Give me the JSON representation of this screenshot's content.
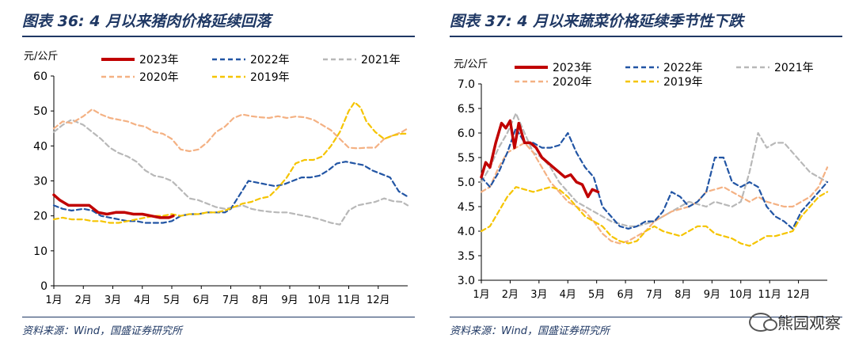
{
  "watermark": "熊园观察",
  "charts": [
    {
      "title": "图表 36:  4 月以来猪肉价格延续回落",
      "source": "资料来源：Wind，国盛证券研究所",
      "unit": "元/公斤",
      "chart_data": {
        "type": "line",
        "title": "4 月以来猪肉价格延续回落",
        "xlabel": "",
        "ylabel": "元/公斤",
        "ylim": [
          0,
          60
        ],
        "yticks": [
          0,
          10,
          20,
          30,
          40,
          50,
          60
        ],
        "xlim": [
          1,
          13
        ],
        "x_tick_labels": [
          "1月",
          "2月",
          "3月",
          "4月",
          "5月",
          "6月",
          "7月",
          "8月",
          "9月",
          "10月",
          "11月",
          "12月"
        ],
        "series": [
          {
            "name": "2021年",
            "color": "#b8b8b8",
            "dash": "dashed",
            "x": [
              1,
              1.3,
              1.6,
              2,
              2.3,
              2.6,
              2.9,
              3.2,
              3.5,
              3.8,
              4.1,
              4.4,
              4.7,
              5,
              5.3,
              5.6,
              5.9,
              6.2,
              6.5,
              6.8,
              7.1,
              7.4,
              7.7,
              8,
              8.3,
              8.6,
              8.9,
              9.2,
              9.5,
              9.8,
              10.1,
              10.4,
              10.7,
              11,
              11.3,
              11.6,
              11.9,
              12.2,
              12.5,
              12.8,
              13
            ],
            "y": [
              44,
              46,
              47.5,
              46,
              44,
              42,
              39.5,
              38,
              37,
              35.5,
              33,
              31.5,
              31,
              30,
              27.5,
              25,
              24.5,
              23.5,
              22.5,
              22,
              22.5,
              23,
              22,
              21.5,
              21.2,
              21,
              21,
              20.5,
              20,
              19.5,
              18.8,
              18,
              17.5,
              21.5,
              23,
              23.5,
              24,
              25,
              24.2,
              24,
              23
            ]
          },
          {
            "name": "2020年",
            "color": "#f4b183",
            "dash": "dashed",
            "x": [
              1,
              1.3,
              1.6,
              2,
              2.3,
              2.6,
              2.9,
              3.2,
              3.5,
              3.8,
              4.1,
              4.4,
              4.7,
              5,
              5.3,
              5.6,
              5.9,
              6.2,
              6.5,
              6.8,
              7.1,
              7.4,
              7.7,
              8,
              8.3,
              8.6,
              8.9,
              9.2,
              9.5,
              9.8,
              10.1,
              10.4,
              10.7,
              11,
              11.3,
              11.6,
              11.9,
              12.2,
              12.5,
              12.8,
              13
            ],
            "y": [
              45,
              47,
              46.5,
              48.5,
              50.5,
              49,
              48,
              47.5,
              47,
              46,
              45.5,
              44,
              43.5,
              42,
              39,
              38.5,
              39,
              41,
              44,
              45.5,
              48,
              49,
              48.5,
              48.2,
              48,
              48.5,
              48,
              48.4,
              48.2,
              47.5,
              46,
              44.5,
              42,
              39.5,
              39.3,
              39.5,
              39.5,
              42,
              43,
              44,
              45
            ]
          },
          {
            "name": "2022年",
            "color": "#2255a4",
            "dash": "dashed",
            "x": [
              1,
              1.3,
              1.6,
              2,
              2.3,
              2.6,
              2.9,
              3.2,
              3.5,
              3.8,
              4.1,
              4.4,
              4.7,
              5,
              5.3,
              5.6,
              5.9,
              6.2,
              6.5,
              6.8,
              7,
              7.3,
              7.6,
              7.9,
              8.2,
              8.5,
              8.8,
              9.1,
              9.4,
              9.7,
              10,
              10.3,
              10.6,
              10.9,
              11.2,
              11.5,
              11.8,
              12.1,
              12.4,
              12.7,
              13
            ],
            "y": [
              23,
              22,
              21.5,
              22,
              21.5,
              20,
              19.5,
              19,
              18.5,
              18.5,
              18,
              18,
              18,
              18.5,
              20,
              20.5,
              20.5,
              21,
              21,
              21,
              22,
              26,
              30,
              29.5,
              29,
              28.5,
              29,
              30,
              31,
              31,
              31.5,
              33,
              35,
              35.5,
              35,
              34.5,
              33,
              32,
              31,
              27,
              25.5
            ]
          },
          {
            "name": "2019年",
            "color": "#f5c400",
            "dash": "dashed",
            "x": [
              1,
              1.3,
              1.6,
              2,
              2.3,
              2.6,
              2.9,
              3.2,
              3.5,
              3.8,
              4.1,
              4.4,
              4.7,
              5,
              5.3,
              5.6,
              5.9,
              6.2,
              6.5,
              6.8,
              7.1,
              7.4,
              7.7,
              8,
              8.3,
              8.6,
              8.9,
              9.2,
              9.5,
              9.8,
              10.1,
              10.4,
              10.7,
              11,
              11.2,
              11.4,
              11.6,
              11.9,
              12.2,
              12.5,
              12.8,
              13
            ],
            "y": [
              19,
              19.5,
              19,
              19,
              18.5,
              18.5,
              18,
              18,
              18.5,
              19,
              19.5,
              20,
              20,
              20.5,
              20,
              20.5,
              20.5,
              21,
              21,
              21.5,
              22.5,
              23.5,
              24,
              25,
              25.5,
              28,
              31,
              35,
              36,
              36,
              37,
              40,
              44,
              50,
              52.5,
              51,
              47,
              44,
              42,
              43,
              43.5,
              43.5
            ]
          },
          {
            "name": "2023年",
            "color": "#c00000",
            "dash": "solid",
            "x": [
              1,
              1.2,
              1.5,
              1.8,
              2.2,
              2.5,
              2.8,
              3.1,
              3.4,
              3.7,
              4,
              4.3,
              4.6,
              4.9,
              5.05
            ],
            "y": [
              26,
              24.5,
              23,
              23,
              23,
              21,
              20.5,
              21,
              21,
              20.5,
              20.5,
              20,
              19.5,
              19.5,
              20
            ]
          }
        ]
      }
    },
    {
      "title": "图表 37:  4 月以来蔬菜价格延续季节性下跌",
      "source": "资料来源：Wind，国盛证券研究所",
      "unit": "元/公斤",
      "chart_data": {
        "type": "line",
        "title": "4 月以来蔬菜价格延续季节性下跌",
        "xlabel": "",
        "ylabel": "元/公斤",
        "ylim": [
          3.0,
          7.0
        ],
        "yticks": [
          3.0,
          3.5,
          4.0,
          4.5,
          5.0,
          5.5,
          6.0,
          6.5,
          7.0
        ],
        "xlim": [
          1,
          13
        ],
        "x_tick_labels": [
          "1月",
          "2月",
          "3月",
          "4月",
          "5月",
          "6月",
          "7月",
          "8月",
          "9月",
          "10月",
          "11月",
          "12月"
        ],
        "series": [
          {
            "name": "2021年",
            "color": "#b8b8b8",
            "dash": "dashed",
            "x": [
              1,
              1.3,
              1.6,
              1.9,
              2.2,
              2.5,
              2.8,
              3.1,
              3.4,
              3.7,
              4,
              4.3,
              4.6,
              4.9,
              5.2,
              5.5,
              5.8,
              6.1,
              6.4,
              6.7,
              7,
              7.3,
              7.6,
              7.9,
              8.2,
              8.5,
              8.8,
              9.1,
              9.4,
              9.7,
              10,
              10.3,
              10.6,
              10.9,
              11.2,
              11.5,
              11.8,
              12.1,
              12.4,
              12.7,
              13
            ],
            "y": [
              5.0,
              5.3,
              5.7,
              6.0,
              6.4,
              6.0,
              5.6,
              5.5,
              5.3,
              5.0,
              4.8,
              4.6,
              4.5,
              4.4,
              4.3,
              4.2,
              4.15,
              4.1,
              4.1,
              4.15,
              4.2,
              4.3,
              4.4,
              4.5,
              4.6,
              4.55,
              4.5,
              4.6,
              4.55,
              4.5,
              4.6,
              5.2,
              6.0,
              5.7,
              5.8,
              5.8,
              5.6,
              5.4,
              5.2,
              5.1,
              5.0
            ]
          },
          {
            "name": "2020年",
            "color": "#f4b183",
            "dash": "dashed",
            "x": [
              1,
              1.3,
              1.6,
              1.9,
              2.2,
              2.5,
              2.8,
              3.1,
              3.4,
              3.7,
              4,
              4.3,
              4.6,
              4.9,
              5.2,
              5.5,
              5.8,
              6.1,
              6.4,
              6.7,
              7,
              7.3,
              7.6,
              7.9,
              8.2,
              8.5,
              8.8,
              9.1,
              9.4,
              9.7,
              10,
              10.3,
              10.6,
              10.9,
              11.2,
              11.5,
              11.8,
              12.1,
              12.4,
              12.7,
              13
            ],
            "y": [
              4.8,
              4.9,
              5.3,
              5.6,
              5.7,
              5.8,
              5.6,
              5.3,
              5.0,
              4.8,
              4.6,
              4.5,
              4.4,
              4.2,
              3.95,
              3.8,
              3.75,
              3.8,
              3.9,
              4.0,
              4.2,
              4.3,
              4.4,
              4.45,
              4.5,
              4.6,
              4.8,
              4.85,
              4.9,
              4.8,
              4.7,
              4.6,
              4.7,
              4.6,
              4.55,
              4.5,
              4.5,
              4.6,
              4.7,
              4.9,
              5.3
            ]
          },
          {
            "name": "2022年",
            "color": "#2255a4",
            "dash": "dashed",
            "x": [
              1,
              1.3,
              1.6,
              1.9,
              2.2,
              2.5,
              2.8,
              3.1,
              3.4,
              3.7,
              4,
              4.3,
              4.6,
              4.9,
              5.2,
              5.5,
              5.8,
              6.1,
              6.4,
              6.7,
              7,
              7.3,
              7.6,
              7.9,
              8.2,
              8.5,
              8.8,
              9.1,
              9.4,
              9.7,
              10,
              10.3,
              10.6,
              10.9,
              11.2,
              11.5,
              11.8,
              12.1,
              12.4,
              12.7,
              13
            ],
            "y": [
              5.1,
              4.9,
              5.2,
              5.6,
              6.1,
              5.8,
              5.8,
              5.7,
              5.7,
              5.75,
              6.0,
              5.6,
              5.3,
              5.1,
              4.5,
              4.3,
              4.1,
              4.05,
              4.1,
              4.2,
              4.2,
              4.4,
              4.8,
              4.7,
              4.5,
              4.6,
              4.8,
              5.5,
              5.5,
              5.0,
              4.9,
              5.0,
              4.9,
              4.5,
              4.3,
              4.2,
              4.05,
              4.4,
              4.6,
              4.8,
              5.0
            ]
          },
          {
            "name": "2019年",
            "color": "#f5c400",
            "dash": "dashed",
            "x": [
              1,
              1.3,
              1.6,
              1.9,
              2.2,
              2.5,
              2.8,
              3.1,
              3.4,
              3.7,
              4,
              4.3,
              4.6,
              4.9,
              5.2,
              5.5,
              5.8,
              6.1,
              6.4,
              6.7,
              7,
              7.3,
              7.6,
              7.9,
              8.2,
              8.5,
              8.8,
              9.1,
              9.4,
              9.7,
              10,
              10.3,
              10.6,
              10.9,
              11.2,
              11.5,
              11.8,
              12.1,
              12.4,
              12.7,
              13
            ],
            "y": [
              4.0,
              4.1,
              4.4,
              4.7,
              4.9,
              4.85,
              4.8,
              4.85,
              4.9,
              4.85,
              4.7,
              4.5,
              4.3,
              4.2,
              4.1,
              3.9,
              3.8,
              3.75,
              3.8,
              4.0,
              4.1,
              4.0,
              3.95,
              3.9,
              4.0,
              4.1,
              4.1,
              3.95,
              3.9,
              3.85,
              3.75,
              3.7,
              3.8,
              3.9,
              3.9,
              3.95,
              4.0,
              4.3,
              4.5,
              4.7,
              4.8
            ]
          },
          {
            "name": "2023年",
            "color": "#c00000",
            "dash": "solid",
            "x": [
              1,
              1.15,
              1.3,
              1.5,
              1.7,
              1.85,
              2,
              2.15,
              2.3,
              2.5,
              2.7,
              2.9,
              3.1,
              3.3,
              3.5,
              3.7,
              3.9,
              4.1,
              4.3,
              4.5,
              4.7,
              4.85,
              5.05
            ],
            "y": [
              5.1,
              5.4,
              5.3,
              5.8,
              6.2,
              6.1,
              6.25,
              5.7,
              6.2,
              5.8,
              5.8,
              5.7,
              5.5,
              5.4,
              5.3,
              5.2,
              5.1,
              5.15,
              5.0,
              4.95,
              4.7,
              4.85,
              4.8
            ]
          }
        ]
      }
    }
  ]
}
